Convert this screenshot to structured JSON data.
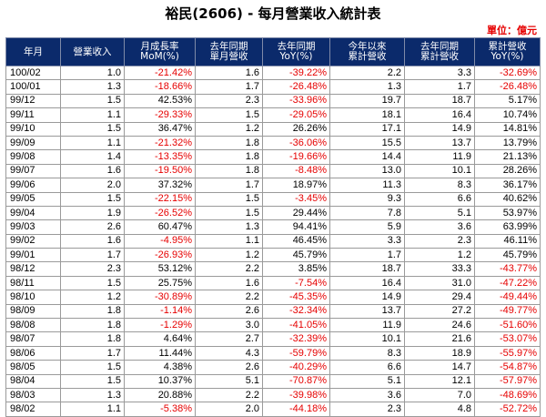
{
  "title": "裕民(2606) - 每月營業收入統計表",
  "unit": "單位：億元",
  "headers": [
    [
      "年月"
    ],
    [
      "營業收入"
    ],
    [
      "月成長率",
      "MoM(%)"
    ],
    [
      "去年同期",
      "單月營收"
    ],
    [
      "去年同期",
      "YoY(%)"
    ],
    [
      "今年以來",
      "累計營收"
    ],
    [
      "去年同期",
      "累計營收"
    ],
    [
      "累計營收",
      "YoY(%)"
    ]
  ],
  "rows": [
    [
      "100/02",
      "1.0",
      "-21.42%",
      "1.6",
      "-39.22%",
      "2.2",
      "3.3",
      "-32.69%"
    ],
    [
      "100/01",
      "1.3",
      "-18.66%",
      "1.7",
      "-26.48%",
      "1.3",
      "1.7",
      "-26.48%"
    ],
    [
      "99/12",
      "1.5",
      "42.53%",
      "2.3",
      "-33.96%",
      "19.7",
      "18.7",
      "5.17%"
    ],
    [
      "99/11",
      "1.1",
      "-29.33%",
      "1.5",
      "-29.05%",
      "18.1",
      "16.4",
      "10.74%"
    ],
    [
      "99/10",
      "1.5",
      "36.47%",
      "1.2",
      "26.26%",
      "17.1",
      "14.9",
      "14.81%"
    ],
    [
      "99/09",
      "1.1",
      "-21.32%",
      "1.8",
      "-36.06%",
      "15.5",
      "13.7",
      "13.79%"
    ],
    [
      "99/08",
      "1.4",
      "-13.35%",
      "1.8",
      "-19.66%",
      "14.4",
      "11.9",
      "21.13%"
    ],
    [
      "99/07",
      "1.6",
      "-19.50%",
      "1.8",
      "-8.48%",
      "13.0",
      "10.1",
      "28.26%"
    ],
    [
      "99/06",
      "2.0",
      "37.32%",
      "1.7",
      "18.97%",
      "11.3",
      "8.3",
      "36.17%"
    ],
    [
      "99/05",
      "1.5",
      "-22.15%",
      "1.5",
      "-3.45%",
      "9.3",
      "6.6",
      "40.62%"
    ],
    [
      "99/04",
      "1.9",
      "-26.52%",
      "1.5",
      "29.44%",
      "7.8",
      "5.1",
      "53.97%"
    ],
    [
      "99/03",
      "2.6",
      "60.47%",
      "1.3",
      "94.41%",
      "5.9",
      "3.6",
      "63.99%"
    ],
    [
      "99/02",
      "1.6",
      "-4.95%",
      "1.1",
      "46.45%",
      "3.3",
      "2.3",
      "46.11%"
    ],
    [
      "99/01",
      "1.7",
      "-26.93%",
      "1.2",
      "45.79%",
      "1.7",
      "1.2",
      "45.79%"
    ],
    [
      "98/12",
      "2.3",
      "53.12%",
      "2.2",
      "3.85%",
      "18.7",
      "33.3",
      "-43.77%"
    ],
    [
      "98/11",
      "1.5",
      "25.75%",
      "1.6",
      "-7.54%",
      "16.4",
      "31.0",
      "-47.22%"
    ],
    [
      "98/10",
      "1.2",
      "-30.89%",
      "2.2",
      "-45.35%",
      "14.9",
      "29.4",
      "-49.44%"
    ],
    [
      "98/09",
      "1.8",
      "-1.14%",
      "2.6",
      "-32.34%",
      "13.7",
      "27.2",
      "-49.77%"
    ],
    [
      "98/08",
      "1.8",
      "-1.29%",
      "3.0",
      "-41.05%",
      "11.9",
      "24.6",
      "-51.60%"
    ],
    [
      "98/07",
      "1.8",
      "4.64%",
      "2.7",
      "-32.39%",
      "10.1",
      "21.6",
      "-53.07%"
    ],
    [
      "98/06",
      "1.7",
      "11.44%",
      "4.3",
      "-59.79%",
      "8.3",
      "18.9",
      "-55.97%"
    ],
    [
      "98/05",
      "1.5",
      "4.38%",
      "2.6",
      "-40.29%",
      "6.6",
      "14.7",
      "-54.87%"
    ],
    [
      "98/04",
      "1.5",
      "10.37%",
      "5.1",
      "-70.87%",
      "5.1",
      "12.1",
      "-57.97%"
    ],
    [
      "98/03",
      "1.3",
      "20.88%",
      "2.2",
      "-39.98%",
      "3.6",
      "7.0",
      "-48.69%"
    ],
    [
      "98/02",
      "1.1",
      "-5.38%",
      "2.0",
      "-44.18%",
      "2.3",
      "4.8",
      "-52.72%"
    ]
  ],
  "colors": {
    "header_bg": "#0b2a6b",
    "negative": "#e60000"
  }
}
